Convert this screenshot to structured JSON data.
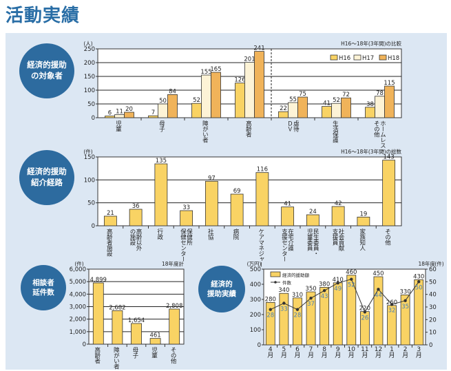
{
  "page_title": "活動実績",
  "circles": {
    "target": "経済的援助\nの対象者",
    "route": "経済的援助\n紹介経路",
    "consult": "相談者\n延件数",
    "results": "経済的\n援助実績"
  },
  "chart_data": [
    {
      "type": "bar",
      "title": "",
      "subtitle": "H16～18年(3年間)の比較",
      "ylabel": "(人)",
      "ylim": [
        0,
        250
      ],
      "yticks": [
        0,
        50,
        100,
        150,
        200,
        250
      ],
      "categories": [
        "児童",
        "母子",
        "障がい者",
        "高齢者",
        "虐待\nＤＶ",
        "生活保護",
        "ホームレス・\nその他"
      ],
      "series": [
        {
          "name": "H16",
          "color": "#f9d364",
          "values": [
            6,
            7,
            52,
            126,
            22,
            41,
            38
          ]
        },
        {
          "name": "H17",
          "color": "#fdf3d6",
          "values": [
            11,
            50,
            155,
            201,
            55,
            52,
            78
          ]
        },
        {
          "name": "H18",
          "color": "#f0b35a",
          "values": [
            20,
            84,
            165,
            241,
            75,
            72,
            115
          ]
        }
      ],
      "legend": "top-right",
      "grid": true
    },
    {
      "type": "bar",
      "subtitle": "H16～18年(3年間)の総数",
      "ylabel": "(件)",
      "ylim": [
        0,
        150
      ],
      "yticks": [
        0,
        50,
        100,
        150
      ],
      "categories": [
        "高齢者施設",
        "高齢以外\nの施設",
        "行政",
        "保健所\n保健センター",
        "社協",
        "病院",
        "ケアマネジャー",
        "在宅介護\n支援センター",
        "民生委員・\n児童委員",
        "社会貢献\n支援員",
        "家族知人",
        "その他"
      ],
      "series": [
        {
          "name": "総数",
          "color": "#f9d364",
          "values": [
            21,
            36,
            135,
            33,
            97,
            69,
            116,
            41,
            24,
            42,
            19,
            143
          ]
        }
      ],
      "grid": true
    },
    {
      "type": "bar",
      "subtitle": "18年度計",
      "ylabel": "(件)",
      "ylim": [
        0,
        6000
      ],
      "yticks": [
        0,
        1000,
        2000,
        3000,
        4000,
        5000,
        6000
      ],
      "ytick_labels": [
        "0",
        "1,000",
        "2,000",
        "3,000",
        "4,000",
        "5,000",
        "6,000"
      ],
      "categories": [
        "高齢者",
        "障がい者",
        "母子",
        "児童",
        "その他"
      ],
      "series": [
        {
          "name": "延件数",
          "color": "#f9d364",
          "values": [
            4899,
            2682,
            1654,
            461,
            2808
          ],
          "labels": [
            "4,899",
            "2,682",
            "1,654",
            "461",
            "2,808"
          ]
        }
      ],
      "grid": true
    },
    {
      "type": "bar+line",
      "subtitle": "18年度",
      "ylabel": "(万円)",
      "y2label": "(件)",
      "ylim": [
        0,
        500
      ],
      "yticks": [
        0,
        100,
        200,
        300,
        400,
        500
      ],
      "y2lim": [
        0,
        60
      ],
      "y2ticks": [
        0,
        10,
        20,
        30,
        40,
        50,
        60
      ],
      "categories": [
        "4\n月",
        "5\n月",
        "6\n月",
        "7\n月",
        "8\n月",
        "9\n月",
        "10\n月",
        "11\n月",
        "12\n月",
        "1\n月",
        "2\n月",
        "3\n月"
      ],
      "series": [
        {
          "name": "経済的援助額",
          "color": "#f9d364",
          "axis": "left",
          "values": [
            280,
            340,
            310,
            350,
            380,
            410,
            460,
            220,
            450,
            260,
            330,
            430
          ]
        },
        {
          "name": "件数",
          "color": "#333333",
          "label_color": "#4a7fb5",
          "axis": "right",
          "values": [
            28,
            33,
            28,
            37,
            43,
            49,
            52,
            26,
            44,
            32,
            35,
            50
          ]
        }
      ],
      "legend": "top-left",
      "grid": false
    }
  ]
}
